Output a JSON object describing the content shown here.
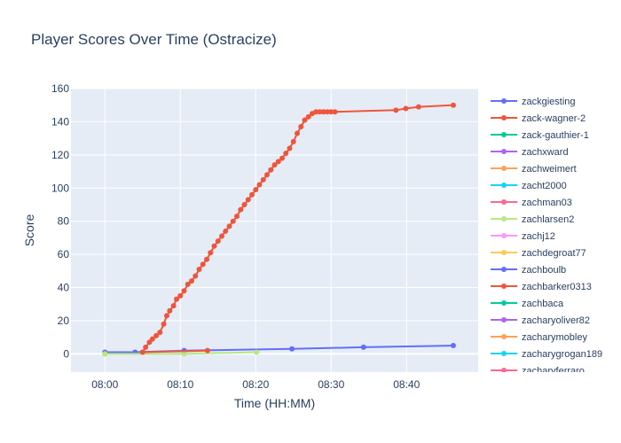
{
  "chart_data": {
    "type": "line",
    "title": "Player Scores Over Time (Ostracize)",
    "xlabel": "Time (HH:MM)",
    "ylabel": "Score",
    "x_unit": "minutes after 08:00",
    "xlim": [
      -4.5,
      49.5
    ],
    "ylim": [
      -11,
      160
    ],
    "x_ticks": [
      {
        "value": 0,
        "label": "08:00"
      },
      {
        "value": 10,
        "label": "08:10"
      },
      {
        "value": 20,
        "label": "08:20"
      },
      {
        "value": 30,
        "label": "08:30"
      },
      {
        "value": 40,
        "label": "08:40"
      }
    ],
    "y_ticks": [
      0,
      20,
      40,
      60,
      80,
      100,
      120,
      140,
      160
    ],
    "grid": true,
    "legend_position": "right",
    "series": [
      {
        "name": "zackgiesting",
        "color": "#636efa",
        "x": [
          0,
          4,
          10.5,
          24.8,
          34.3,
          46.2
        ],
        "y": [
          1,
          1,
          2,
          3,
          4,
          5
        ]
      },
      {
        "name": "zack-wagner-2",
        "color": "#EF553B",
        "x": [
          5.0,
          5.4,
          5.9,
          6.3,
          6.8,
          7.3,
          7.8,
          8.2,
          8.6,
          9.1,
          9.5,
          10.0,
          10.5,
          11.0,
          11.5,
          12.0,
          12.5,
          13.0,
          13.5,
          14.0,
          14.5,
          15.0,
          15.5,
          16.0,
          16.5,
          17.0,
          17.5,
          18.0,
          18.5,
          19.0,
          19.5,
          20.0,
          20.5,
          21.0,
          21.5,
          22.0,
          22.5,
          23.0,
          23.5,
          24.0,
          24.5,
          25.0,
          25.5,
          26.0,
          26.5,
          27.0,
          27.5,
          28.0,
          28.5,
          29.0,
          29.5,
          30.0,
          30.5,
          38.6,
          39.9,
          41.6,
          46.2
        ],
        "y": [
          1,
          4,
          7,
          9,
          11,
          13,
          18,
          23,
          26,
          29,
          33,
          35,
          38,
          42,
          44,
          47,
          51,
          54,
          57,
          61,
          65,
          68,
          71,
          74,
          77,
          80,
          83,
          87,
          90,
          93,
          96,
          99,
          102,
          105,
          108,
          111,
          114,
          116,
          118,
          121,
          124,
          128,
          133,
          137,
          141,
          143,
          145,
          146,
          146,
          146,
          146,
          146,
          146,
          147,
          148,
          149,
          150
        ]
      },
      {
        "name": "zack-gauthier-1",
        "color": "#00cc96",
        "x": [],
        "y": []
      },
      {
        "name": "zachxward",
        "color": "#ab63fa",
        "x": [],
        "y": []
      },
      {
        "name": "zachweimert",
        "color": "#FFA15A",
        "x": [
          0
        ],
        "y": [
          0
        ]
      },
      {
        "name": "zacht2000",
        "color": "#19d3f3",
        "x": [],
        "y": []
      },
      {
        "name": "zachman03",
        "color": "#FF6692",
        "x": [],
        "y": []
      },
      {
        "name": "zachlarsen2",
        "color": "#B6E880",
        "x": [
          0,
          10.5,
          20.1
        ],
        "y": [
          0,
          0,
          1
        ]
      },
      {
        "name": "zachj12",
        "color": "#FF97FF",
        "x": [],
        "y": []
      },
      {
        "name": "zachdegroat77",
        "color": "#FECB52",
        "x": [],
        "y": []
      },
      {
        "name": "zachboulb",
        "color": "#636efa",
        "x": [],
        "y": []
      },
      {
        "name": "zachbarker0313",
        "color": "#EF553B",
        "x": [
          5.0,
          13.6
        ],
        "y": [
          1,
          2
        ]
      },
      {
        "name": "zachbaca",
        "color": "#00cc96",
        "x": [],
        "y": []
      },
      {
        "name": "zacharyoliver82",
        "color": "#ab63fa",
        "x": [],
        "y": []
      },
      {
        "name": "zacharymobley",
        "color": "#FFA15A",
        "x": [],
        "y": []
      },
      {
        "name": "zacharygrogan189",
        "color": "#19d3f3",
        "x": [],
        "y": []
      },
      {
        "name": "zacharyferraro",
        "color": "#FF6692",
        "x": [],
        "y": []
      }
    ]
  }
}
